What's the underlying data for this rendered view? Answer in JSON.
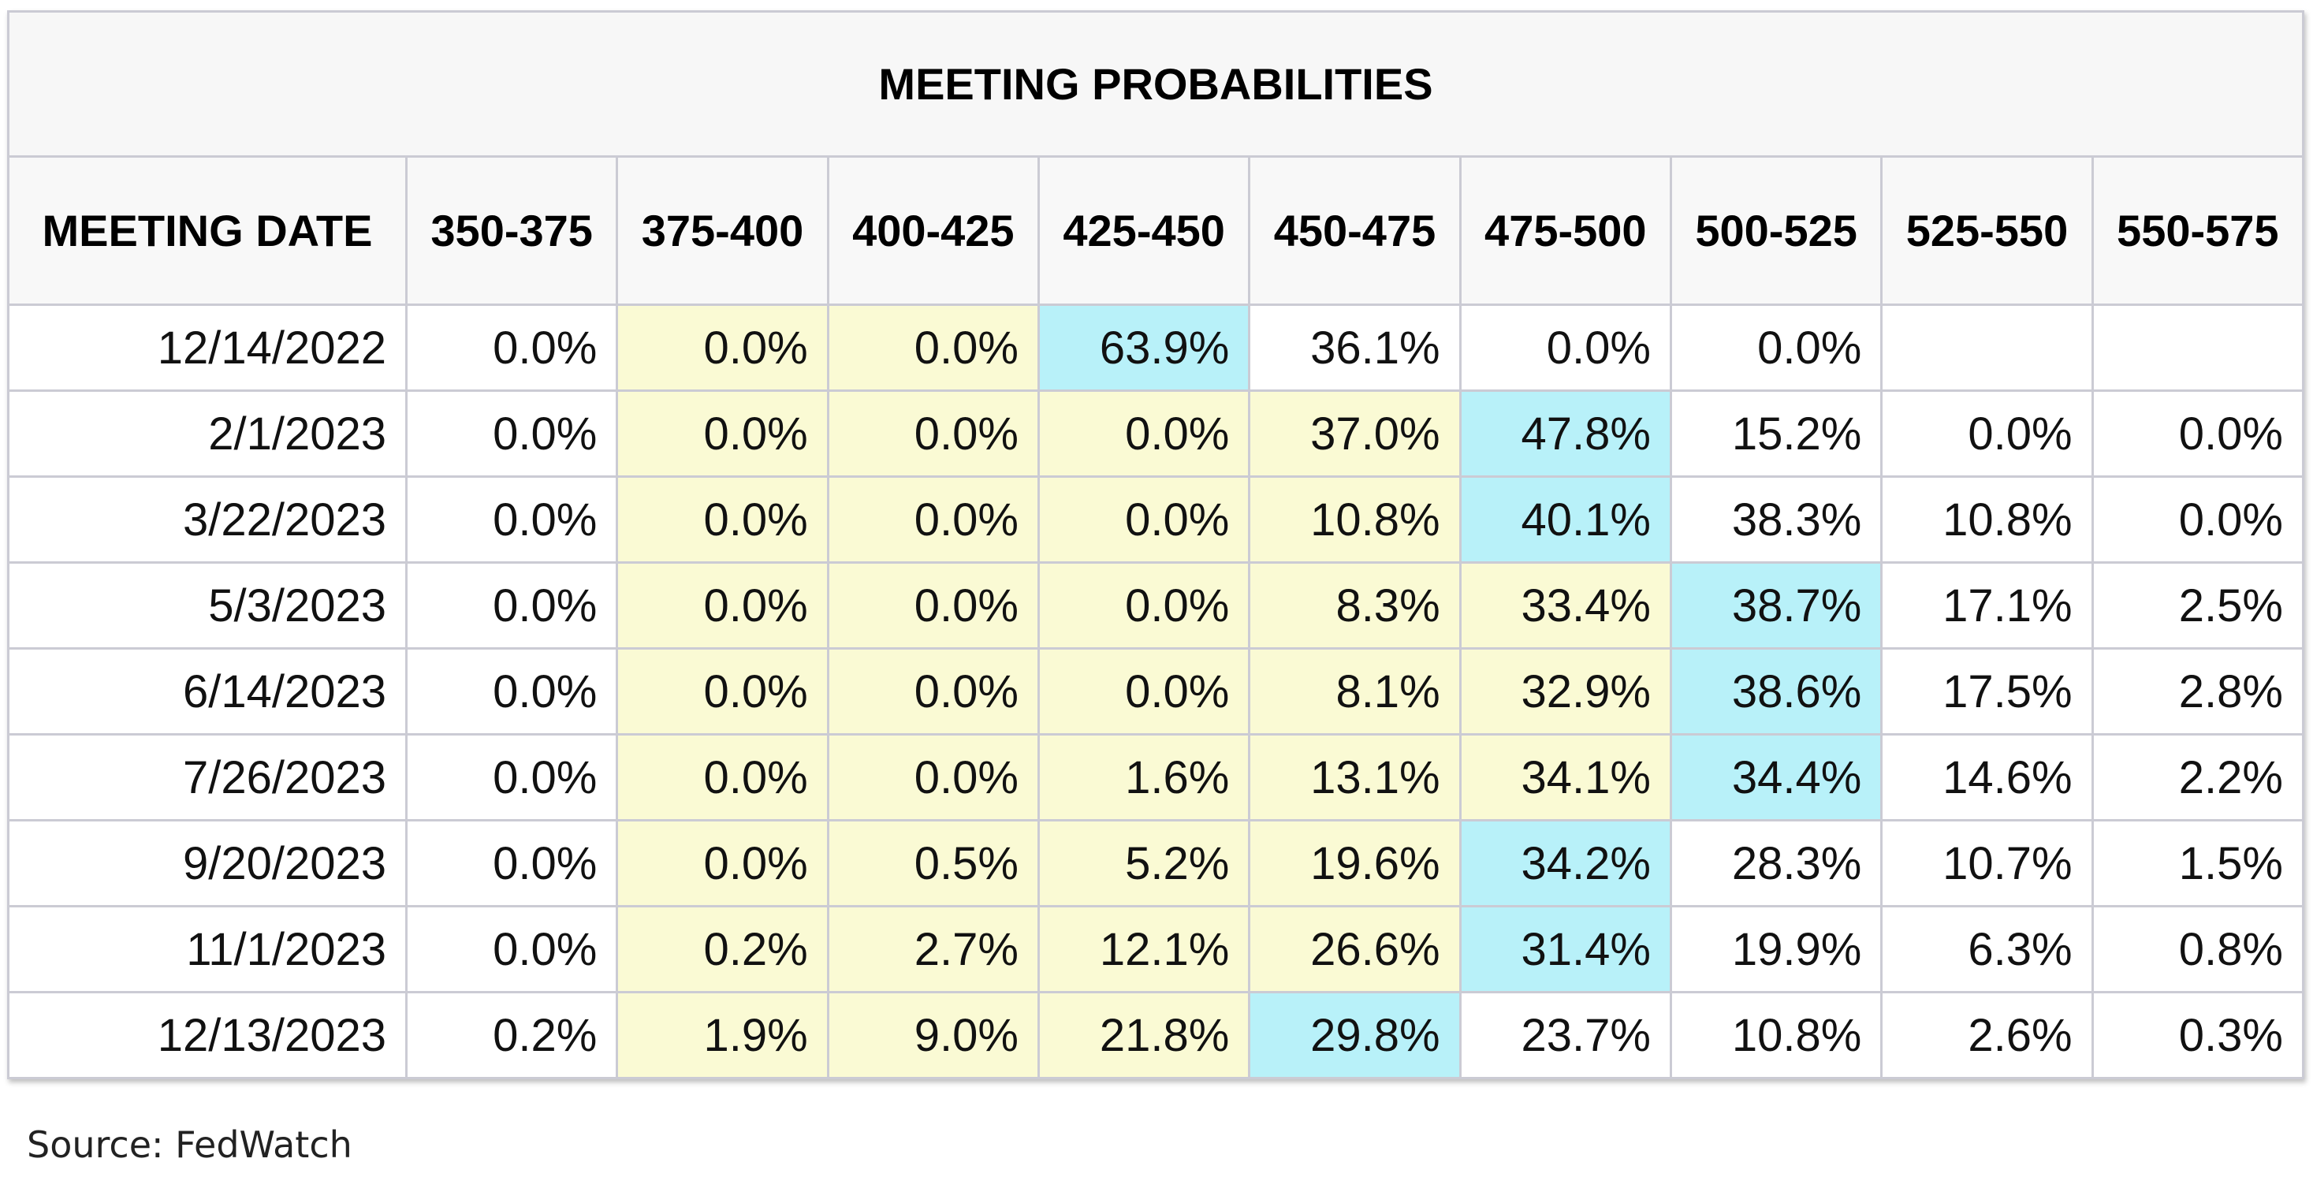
{
  "title": "MEETING PROBABILITIES",
  "header": [
    "MEETING DATE",
    "350-375",
    "375-400",
    "400-425",
    "425-450",
    "450-475",
    "475-500",
    "500-525",
    "525-550",
    "550-575"
  ],
  "rows": [
    {
      "date": "12/14/2022",
      "cells": [
        "0.0%",
        "0.0%",
        "0.0%",
        "63.9%",
        "36.1%",
        "0.0%",
        "0.0%",
        null,
        null
      ],
      "colors": [
        null,
        "#fafad4",
        "#fafad4",
        "#b8f1f9",
        null,
        null,
        null,
        null,
        null
      ]
    },
    {
      "date": "2/1/2023",
      "cells": [
        "0.0%",
        "0.0%",
        "0.0%",
        "0.0%",
        "37.0%",
        "47.8%",
        "15.2%",
        "0.0%",
        "0.0%"
      ],
      "colors": [
        null,
        "#fafad4",
        "#fafad4",
        "#fafad4",
        "#fafad4",
        "#b8f1f9",
        null,
        null,
        null
      ]
    },
    {
      "date": "3/22/2023",
      "cells": [
        "0.0%",
        "0.0%",
        "0.0%",
        "0.0%",
        "10.8%",
        "40.1%",
        "38.3%",
        "10.8%",
        "0.0%"
      ],
      "colors": [
        null,
        "#fafad4",
        "#fafad4",
        "#fafad4",
        "#fafad4",
        "#b8f1f9",
        null,
        null,
        null
      ]
    },
    {
      "date": "5/3/2023",
      "cells": [
        "0.0%",
        "0.0%",
        "0.0%",
        "0.0%",
        "8.3%",
        "33.4%",
        "38.7%",
        "17.1%",
        "2.5%"
      ],
      "colors": [
        null,
        "#fafad4",
        "#fafad4",
        "#fafad4",
        "#fafad4",
        "#fafad4",
        "#b8f1f9",
        null,
        null
      ]
    },
    {
      "date": "6/14/2023",
      "cells": [
        "0.0%",
        "0.0%",
        "0.0%",
        "0.0%",
        "8.1%",
        "32.9%",
        "38.6%",
        "17.5%",
        "2.8%"
      ],
      "colors": [
        null,
        "#fafad4",
        "#fafad4",
        "#fafad4",
        "#fafad4",
        "#fafad4",
        "#b8f1f9",
        null,
        null
      ]
    },
    {
      "date": "7/26/2023",
      "cells": [
        "0.0%",
        "0.0%",
        "0.0%",
        "1.6%",
        "13.1%",
        "34.1%",
        "34.4%",
        "14.6%",
        "2.2%"
      ],
      "colors": [
        null,
        "#fafad4",
        "#fafad4",
        "#fafad4",
        "#fafad4",
        "#fafad4",
        "#b8f1f9",
        null,
        null
      ]
    },
    {
      "date": "9/20/2023",
      "cells": [
        "0.0%",
        "0.0%",
        "0.5%",
        "5.2%",
        "19.6%",
        "34.2%",
        "28.3%",
        "10.7%",
        "1.5%"
      ],
      "colors": [
        null,
        "#fafad4",
        "#fafad4",
        "#fafad4",
        "#fafad4",
        "#b8f1f9",
        null,
        null,
        null
      ]
    },
    {
      "date": "11/1/2023",
      "cells": [
        "0.0%",
        "0.2%",
        "2.7%",
        "12.1%",
        "26.6%",
        "31.4%",
        "19.9%",
        "6.3%",
        "0.8%"
      ],
      "colors": [
        null,
        "#fafad4",
        "#fafad4",
        "#fafad4",
        "#fafad4",
        "#b8f1f9",
        null,
        null,
        null
      ]
    },
    {
      "date": "12/13/2023",
      "cells": [
        "0.2%",
        "1.9%",
        "9.0%",
        "21.8%",
        "29.8%",
        "23.7%",
        "10.8%",
        "2.6%",
        "0.3%"
      ],
      "colors": [
        null,
        "#fafad4",
        "#fafad4",
        "#fafad4",
        "#b8f1f9",
        null,
        null,
        null,
        null
      ]
    }
  ],
  "source": "Source: FedWatch"
}
